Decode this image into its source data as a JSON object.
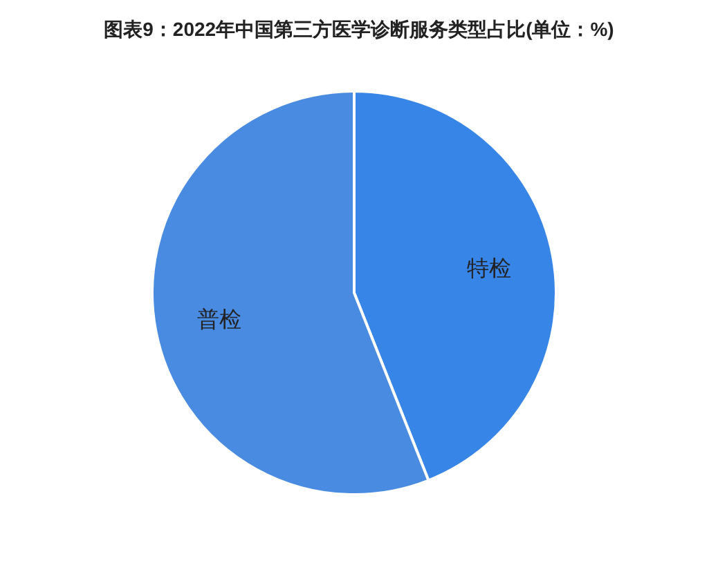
{
  "chart_data": {
    "type": "pie",
    "title": "图表9：2022年中国第三方医学诊断服务类型占比(单位：%)",
    "categories": [
      "特检",
      "普检"
    ],
    "values": [
      44,
      56
    ],
    "colors": [
      "#3785e7",
      "#4a8be2"
    ]
  }
}
